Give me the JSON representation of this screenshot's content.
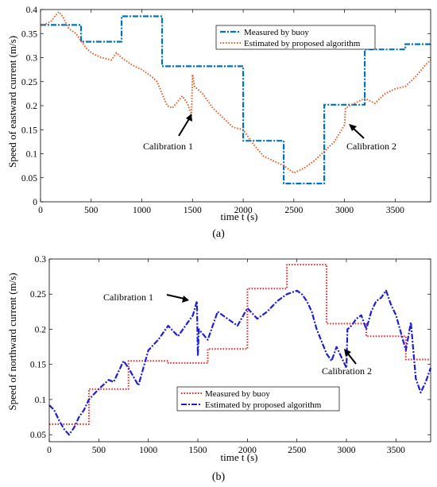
{
  "chart_data": [
    {
      "type": "line",
      "panel_label": "(a)",
      "xlabel": "time t (s)",
      "ylabel": "Speed of eastward current (m/s)",
      "xlim": [
        0,
        3850
      ],
      "ylim": [
        0,
        0.4
      ],
      "xticks": [
        0,
        500,
        1000,
        1500,
        2000,
        2500,
        3000,
        3500
      ],
      "yticks": [
        0,
        0.05,
        0.1,
        0.15,
        0.2,
        0.25,
        0.3,
        0.35,
        0.4
      ],
      "ytick_labels": [
        "0",
        "0.05",
        "0.1",
        "0.15",
        "0.2",
        "0.25",
        "0.3",
        "0.35",
        "0.4"
      ],
      "legend_position": "top-right",
      "series": [
        {
          "name": "Measured by buoy",
          "color": "#0072BD",
          "style": "dashdot",
          "x": [
            0,
            400,
            400,
            800,
            800,
            1200,
            1200,
            2000,
            2000,
            2400,
            2400,
            2800,
            2800,
            3200,
            3200,
            3600,
            3600,
            3850
          ],
          "y": [
            0.368,
            0.368,
            0.333,
            0.333,
            0.386,
            0.386,
            0.282,
            0.282,
            0.127,
            0.127,
            0.038,
            0.038,
            0.202,
            0.202,
            0.317,
            0.317,
            0.328,
            0.328
          ]
        },
        {
          "name": "Estimated by proposed algorithm",
          "color": "#EB5A1E",
          "style": "dotted",
          "x": [
            0,
            50,
            100,
            150,
            180,
            220,
            280,
            350,
            400,
            450,
            500,
            600,
            700,
            750,
            800,
            900,
            1000,
            1100,
            1150,
            1200,
            1250,
            1300,
            1400,
            1450,
            1490,
            1500,
            1520,
            1600,
            1700,
            1800,
            1900,
            2000,
            2100,
            2200,
            2300,
            2400,
            2500,
            2600,
            2700,
            2800,
            2900,
            3000,
            3010,
            3100,
            3200,
            3300,
            3400,
            3500,
            3600,
            3700,
            3800,
            3850
          ],
          "y": [
            0.367,
            0.37,
            0.375,
            0.388,
            0.395,
            0.385,
            0.36,
            0.35,
            0.335,
            0.32,
            0.31,
            0.3,
            0.295,
            0.31,
            0.3,
            0.285,
            0.275,
            0.26,
            0.25,
            0.225,
            0.2,
            0.195,
            0.22,
            0.205,
            0.18,
            0.265,
            0.24,
            0.225,
            0.195,
            0.175,
            0.155,
            0.15,
            0.12,
            0.095,
            0.085,
            0.075,
            0.06,
            0.07,
            0.085,
            0.105,
            0.125,
            0.16,
            0.195,
            0.205,
            0.215,
            0.205,
            0.225,
            0.235,
            0.24,
            0.26,
            0.285,
            0.295
          ]
        }
      ],
      "annotations": [
        {
          "text": "Calibration 1",
          "x": 1500,
          "y": 0.19
        },
        {
          "text": "Calibration 2",
          "x": 3030,
          "y": 0.165
        }
      ]
    },
    {
      "type": "line",
      "panel_label": "(b)",
      "xlabel": "time t (s)",
      "ylabel": "Speed of northward current (m/s)",
      "xlim": [
        0,
        3850
      ],
      "ylim": [
        0.04,
        0.3
      ],
      "xticks": [
        0,
        500,
        1000,
        1500,
        2000,
        2500,
        3000,
        3500
      ],
      "yticks": [
        0.05,
        0.1,
        0.15,
        0.2,
        0.25,
        0.3
      ],
      "ytick_labels": [
        "0.05",
        "0.1",
        "0.15",
        "0.2",
        "0.25",
        "0.3"
      ],
      "legend_position": "bottom-left",
      "series": [
        {
          "name": "Measured by buoy",
          "color": "#E62020",
          "style": "dotted",
          "x": [
            0,
            400,
            400,
            800,
            800,
            1200,
            1200,
            1600,
            1600,
            2000,
            2000,
            2400,
            2400,
            2800,
            2800,
            3200,
            3200,
            3600,
            3600,
            3850
          ],
          "y": [
            0.065,
            0.065,
            0.115,
            0.115,
            0.155,
            0.155,
            0.152,
            0.152,
            0.172,
            0.172,
            0.258,
            0.258,
            0.292,
            0.292,
            0.208,
            0.208,
            0.19,
            0.19,
            0.157,
            0.157
          ]
        },
        {
          "name": "Estimated by proposed algorithm",
          "color": "#1E1ED2",
          "style": "dashdot",
          "x": [
            0,
            50,
            100,
            150,
            200,
            250,
            300,
            350,
            400,
            500,
            600,
            650,
            700,
            750,
            800,
            900,
            1000,
            1100,
            1200,
            1300,
            1400,
            1450,
            1490,
            1500,
            1510,
            1600,
            1700,
            1800,
            1900,
            2000,
            2100,
            2200,
            2300,
            2400,
            2500,
            2550,
            2600,
            2650,
            2700,
            2800,
            2850,
            2900,
            2950,
            3000,
            3010,
            3050,
            3100,
            3150,
            3200,
            3250,
            3300,
            3350,
            3400,
            3450,
            3500,
            3550,
            3600,
            3650,
            3700,
            3750,
            3800,
            3850
          ],
          "y": [
            0.092,
            0.085,
            0.07,
            0.058,
            0.05,
            0.06,
            0.075,
            0.085,
            0.1,
            0.115,
            0.128,
            0.125,
            0.14,
            0.155,
            0.145,
            0.12,
            0.17,
            0.185,
            0.205,
            0.19,
            0.21,
            0.22,
            0.24,
            0.162,
            0.2,
            0.185,
            0.225,
            0.215,
            0.205,
            0.23,
            0.215,
            0.225,
            0.24,
            0.25,
            0.255,
            0.25,
            0.24,
            0.225,
            0.2,
            0.165,
            0.155,
            0.175,
            0.16,
            0.145,
            0.2,
            0.205,
            0.215,
            0.22,
            0.2,
            0.225,
            0.24,
            0.245,
            0.255,
            0.235,
            0.22,
            0.195,
            0.17,
            0.21,
            0.13,
            0.11,
            0.125,
            0.145
          ]
        }
      ],
      "annotations": [
        {
          "text": "Calibration 1",
          "x": 1500,
          "y": 0.238
        },
        {
          "text": "Calibration 2",
          "x": 3010,
          "y": 0.165
        }
      ]
    }
  ]
}
